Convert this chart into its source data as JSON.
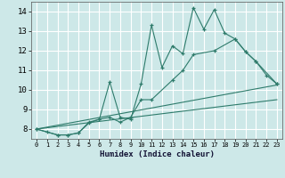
{
  "xlabel": "Humidex (Indice chaleur)",
  "xlim": [
    -0.5,
    23.5
  ],
  "ylim": [
    7.5,
    14.5
  ],
  "xticks": [
    0,
    1,
    2,
    3,
    4,
    5,
    6,
    7,
    8,
    9,
    10,
    11,
    12,
    13,
    14,
    15,
    16,
    17,
    18,
    19,
    20,
    21,
    22,
    23
  ],
  "yticks": [
    8,
    9,
    10,
    11,
    12,
    13,
    14
  ],
  "bg_color": "#cde8e8",
  "grid_color": "#ffffff",
  "line_color": "#2e7b6b",
  "lines": [
    {
      "x": [
        0,
        1,
        2,
        3,
        4,
        5,
        6,
        7,
        8,
        9,
        10,
        11,
        12,
        13,
        14,
        15,
        16,
        17,
        18,
        19,
        20,
        21,
        22,
        23
      ],
      "y": [
        8.0,
        7.85,
        7.7,
        7.7,
        7.8,
        8.3,
        8.5,
        10.4,
        8.6,
        8.5,
        10.3,
        13.3,
        11.15,
        12.25,
        11.85,
        14.2,
        13.1,
        14.1,
        12.9,
        12.6,
        11.95,
        11.45,
        10.75,
        10.3
      ],
      "marker": true
    },
    {
      "x": [
        0,
        2,
        3,
        4,
        5,
        6,
        7,
        8,
        9,
        10,
        11,
        13,
        14,
        15,
        17,
        19,
        20,
        21,
        23
      ],
      "y": [
        8.0,
        7.7,
        7.7,
        7.8,
        8.35,
        8.5,
        8.6,
        8.35,
        8.6,
        9.5,
        9.5,
        10.5,
        11.0,
        11.8,
        12.0,
        12.6,
        11.95,
        11.45,
        10.3
      ],
      "marker": true
    },
    {
      "x": [
        0,
        23
      ],
      "y": [
        8.0,
        10.25
      ],
      "marker": false
    },
    {
      "x": [
        0,
        23
      ],
      "y": [
        8.0,
        9.5
      ],
      "marker": false
    }
  ]
}
